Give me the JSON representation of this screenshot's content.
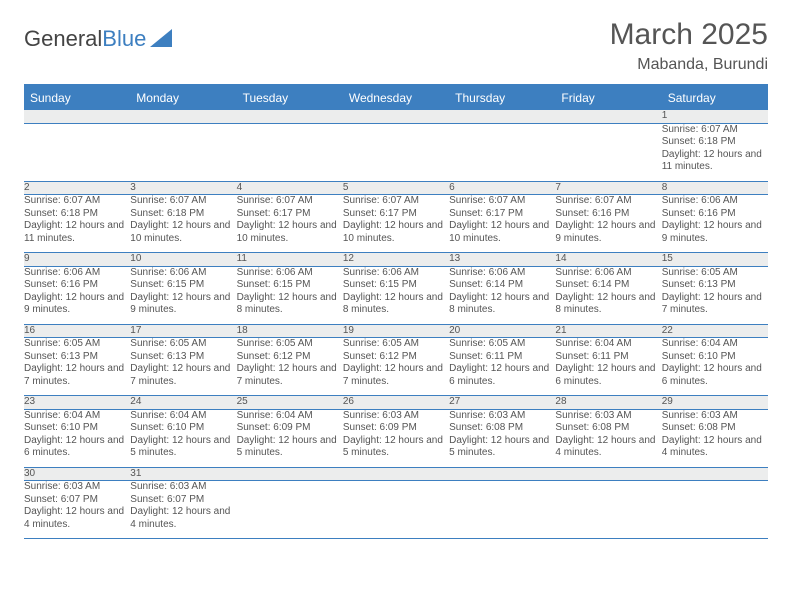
{
  "logo": {
    "word1": "General",
    "word2": "Blue"
  },
  "title": "March 2025",
  "location": "Mabanda, Burundi",
  "colors": {
    "header_bg": "#3d7fc0",
    "header_text": "#ffffff",
    "daynum_bg": "#eceded",
    "rule": "#3d7fc0",
    "text": "#555555"
  },
  "typography": {
    "title_fontsize": 30,
    "location_fontsize": 16,
    "weekday_fontsize": 12,
    "daynum_fontsize": 11,
    "detail_fontsize": 10
  },
  "weekdays": [
    "Sunday",
    "Monday",
    "Tuesday",
    "Wednesday",
    "Thursday",
    "Friday",
    "Saturday"
  ],
  "weeks": [
    {
      "nums": [
        "",
        "",
        "",
        "",
        "",
        "",
        "1"
      ],
      "details": [
        null,
        null,
        null,
        null,
        null,
        null,
        {
          "sunrise": "Sunrise: 6:07 AM",
          "sunset": "Sunset: 6:18 PM",
          "daylight": "Daylight: 12 hours and 11 minutes."
        }
      ]
    },
    {
      "nums": [
        "2",
        "3",
        "4",
        "5",
        "6",
        "7",
        "8"
      ],
      "details": [
        {
          "sunrise": "Sunrise: 6:07 AM",
          "sunset": "Sunset: 6:18 PM",
          "daylight": "Daylight: 12 hours and 11 minutes."
        },
        {
          "sunrise": "Sunrise: 6:07 AM",
          "sunset": "Sunset: 6:18 PM",
          "daylight": "Daylight: 12 hours and 10 minutes."
        },
        {
          "sunrise": "Sunrise: 6:07 AM",
          "sunset": "Sunset: 6:17 PM",
          "daylight": "Daylight: 12 hours and 10 minutes."
        },
        {
          "sunrise": "Sunrise: 6:07 AM",
          "sunset": "Sunset: 6:17 PM",
          "daylight": "Daylight: 12 hours and 10 minutes."
        },
        {
          "sunrise": "Sunrise: 6:07 AM",
          "sunset": "Sunset: 6:17 PM",
          "daylight": "Daylight: 12 hours and 10 minutes."
        },
        {
          "sunrise": "Sunrise: 6:07 AM",
          "sunset": "Sunset: 6:16 PM",
          "daylight": "Daylight: 12 hours and 9 minutes."
        },
        {
          "sunrise": "Sunrise: 6:06 AM",
          "sunset": "Sunset: 6:16 PM",
          "daylight": "Daylight: 12 hours and 9 minutes."
        }
      ]
    },
    {
      "nums": [
        "9",
        "10",
        "11",
        "12",
        "13",
        "14",
        "15"
      ],
      "details": [
        {
          "sunrise": "Sunrise: 6:06 AM",
          "sunset": "Sunset: 6:16 PM",
          "daylight": "Daylight: 12 hours and 9 minutes."
        },
        {
          "sunrise": "Sunrise: 6:06 AM",
          "sunset": "Sunset: 6:15 PM",
          "daylight": "Daylight: 12 hours and 9 minutes."
        },
        {
          "sunrise": "Sunrise: 6:06 AM",
          "sunset": "Sunset: 6:15 PM",
          "daylight": "Daylight: 12 hours and 8 minutes."
        },
        {
          "sunrise": "Sunrise: 6:06 AM",
          "sunset": "Sunset: 6:15 PM",
          "daylight": "Daylight: 12 hours and 8 minutes."
        },
        {
          "sunrise": "Sunrise: 6:06 AM",
          "sunset": "Sunset: 6:14 PM",
          "daylight": "Daylight: 12 hours and 8 minutes."
        },
        {
          "sunrise": "Sunrise: 6:06 AM",
          "sunset": "Sunset: 6:14 PM",
          "daylight": "Daylight: 12 hours and 8 minutes."
        },
        {
          "sunrise": "Sunrise: 6:05 AM",
          "sunset": "Sunset: 6:13 PM",
          "daylight": "Daylight: 12 hours and 7 minutes."
        }
      ]
    },
    {
      "nums": [
        "16",
        "17",
        "18",
        "19",
        "20",
        "21",
        "22"
      ],
      "details": [
        {
          "sunrise": "Sunrise: 6:05 AM",
          "sunset": "Sunset: 6:13 PM",
          "daylight": "Daylight: 12 hours and 7 minutes."
        },
        {
          "sunrise": "Sunrise: 6:05 AM",
          "sunset": "Sunset: 6:13 PM",
          "daylight": "Daylight: 12 hours and 7 minutes."
        },
        {
          "sunrise": "Sunrise: 6:05 AM",
          "sunset": "Sunset: 6:12 PM",
          "daylight": "Daylight: 12 hours and 7 minutes."
        },
        {
          "sunrise": "Sunrise: 6:05 AM",
          "sunset": "Sunset: 6:12 PM",
          "daylight": "Daylight: 12 hours and 7 minutes."
        },
        {
          "sunrise": "Sunrise: 6:05 AM",
          "sunset": "Sunset: 6:11 PM",
          "daylight": "Daylight: 12 hours and 6 minutes."
        },
        {
          "sunrise": "Sunrise: 6:04 AM",
          "sunset": "Sunset: 6:11 PM",
          "daylight": "Daylight: 12 hours and 6 minutes."
        },
        {
          "sunrise": "Sunrise: 6:04 AM",
          "sunset": "Sunset: 6:10 PM",
          "daylight": "Daylight: 12 hours and 6 minutes."
        }
      ]
    },
    {
      "nums": [
        "23",
        "24",
        "25",
        "26",
        "27",
        "28",
        "29"
      ],
      "details": [
        {
          "sunrise": "Sunrise: 6:04 AM",
          "sunset": "Sunset: 6:10 PM",
          "daylight": "Daylight: 12 hours and 6 minutes."
        },
        {
          "sunrise": "Sunrise: 6:04 AM",
          "sunset": "Sunset: 6:10 PM",
          "daylight": "Daylight: 12 hours and 5 minutes."
        },
        {
          "sunrise": "Sunrise: 6:04 AM",
          "sunset": "Sunset: 6:09 PM",
          "daylight": "Daylight: 12 hours and 5 minutes."
        },
        {
          "sunrise": "Sunrise: 6:03 AM",
          "sunset": "Sunset: 6:09 PM",
          "daylight": "Daylight: 12 hours and 5 minutes."
        },
        {
          "sunrise": "Sunrise: 6:03 AM",
          "sunset": "Sunset: 6:08 PM",
          "daylight": "Daylight: 12 hours and 5 minutes."
        },
        {
          "sunrise": "Sunrise: 6:03 AM",
          "sunset": "Sunset: 6:08 PM",
          "daylight": "Daylight: 12 hours and 4 minutes."
        },
        {
          "sunrise": "Sunrise: 6:03 AM",
          "sunset": "Sunset: 6:08 PM",
          "daylight": "Daylight: 12 hours and 4 minutes."
        }
      ]
    },
    {
      "nums": [
        "30",
        "31",
        "",
        "",
        "",
        "",
        ""
      ],
      "details": [
        {
          "sunrise": "Sunrise: 6:03 AM",
          "sunset": "Sunset: 6:07 PM",
          "daylight": "Daylight: 12 hours and 4 minutes."
        },
        {
          "sunrise": "Sunrise: 6:03 AM",
          "sunset": "Sunset: 6:07 PM",
          "daylight": "Daylight: 12 hours and 4 minutes."
        },
        null,
        null,
        null,
        null,
        null
      ]
    }
  ]
}
